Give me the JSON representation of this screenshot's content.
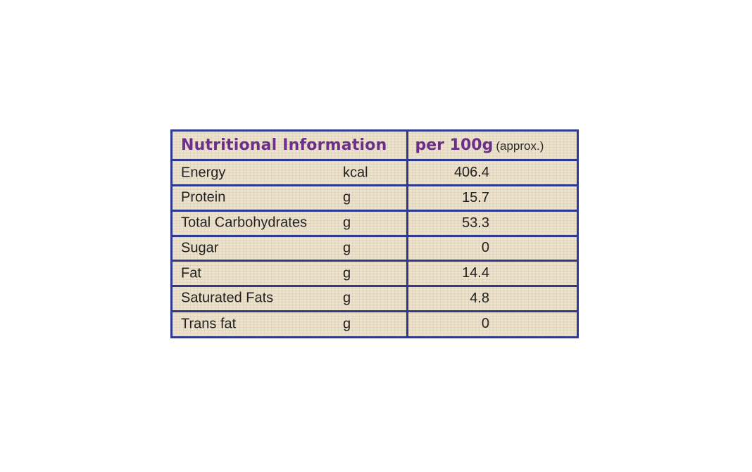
{
  "header": {
    "title": "Nutritional Information",
    "per": "per 100g",
    "approx": "(approx.)"
  },
  "rows": [
    {
      "name": "Energy",
      "unit": "kcal",
      "value": "406.4"
    },
    {
      "name": "Protein",
      "unit": "g",
      "value": "15.7"
    },
    {
      "name": "Total Carbohydrates",
      "unit": "g",
      "value": "53.3"
    },
    {
      "name": "Sugar",
      "unit": "g",
      "value": "0"
    },
    {
      "name": "Fat",
      "unit": "g",
      "value": "14.4"
    },
    {
      "name": "Saturated Fats",
      "unit": "g",
      "value": "4.8"
    },
    {
      "name": "Trans fat",
      "unit": "g",
      "value": "0"
    }
  ],
  "colors": {
    "border": "#2f3a8f",
    "heading": "#6b2f8a",
    "background": "#ede3cd"
  }
}
